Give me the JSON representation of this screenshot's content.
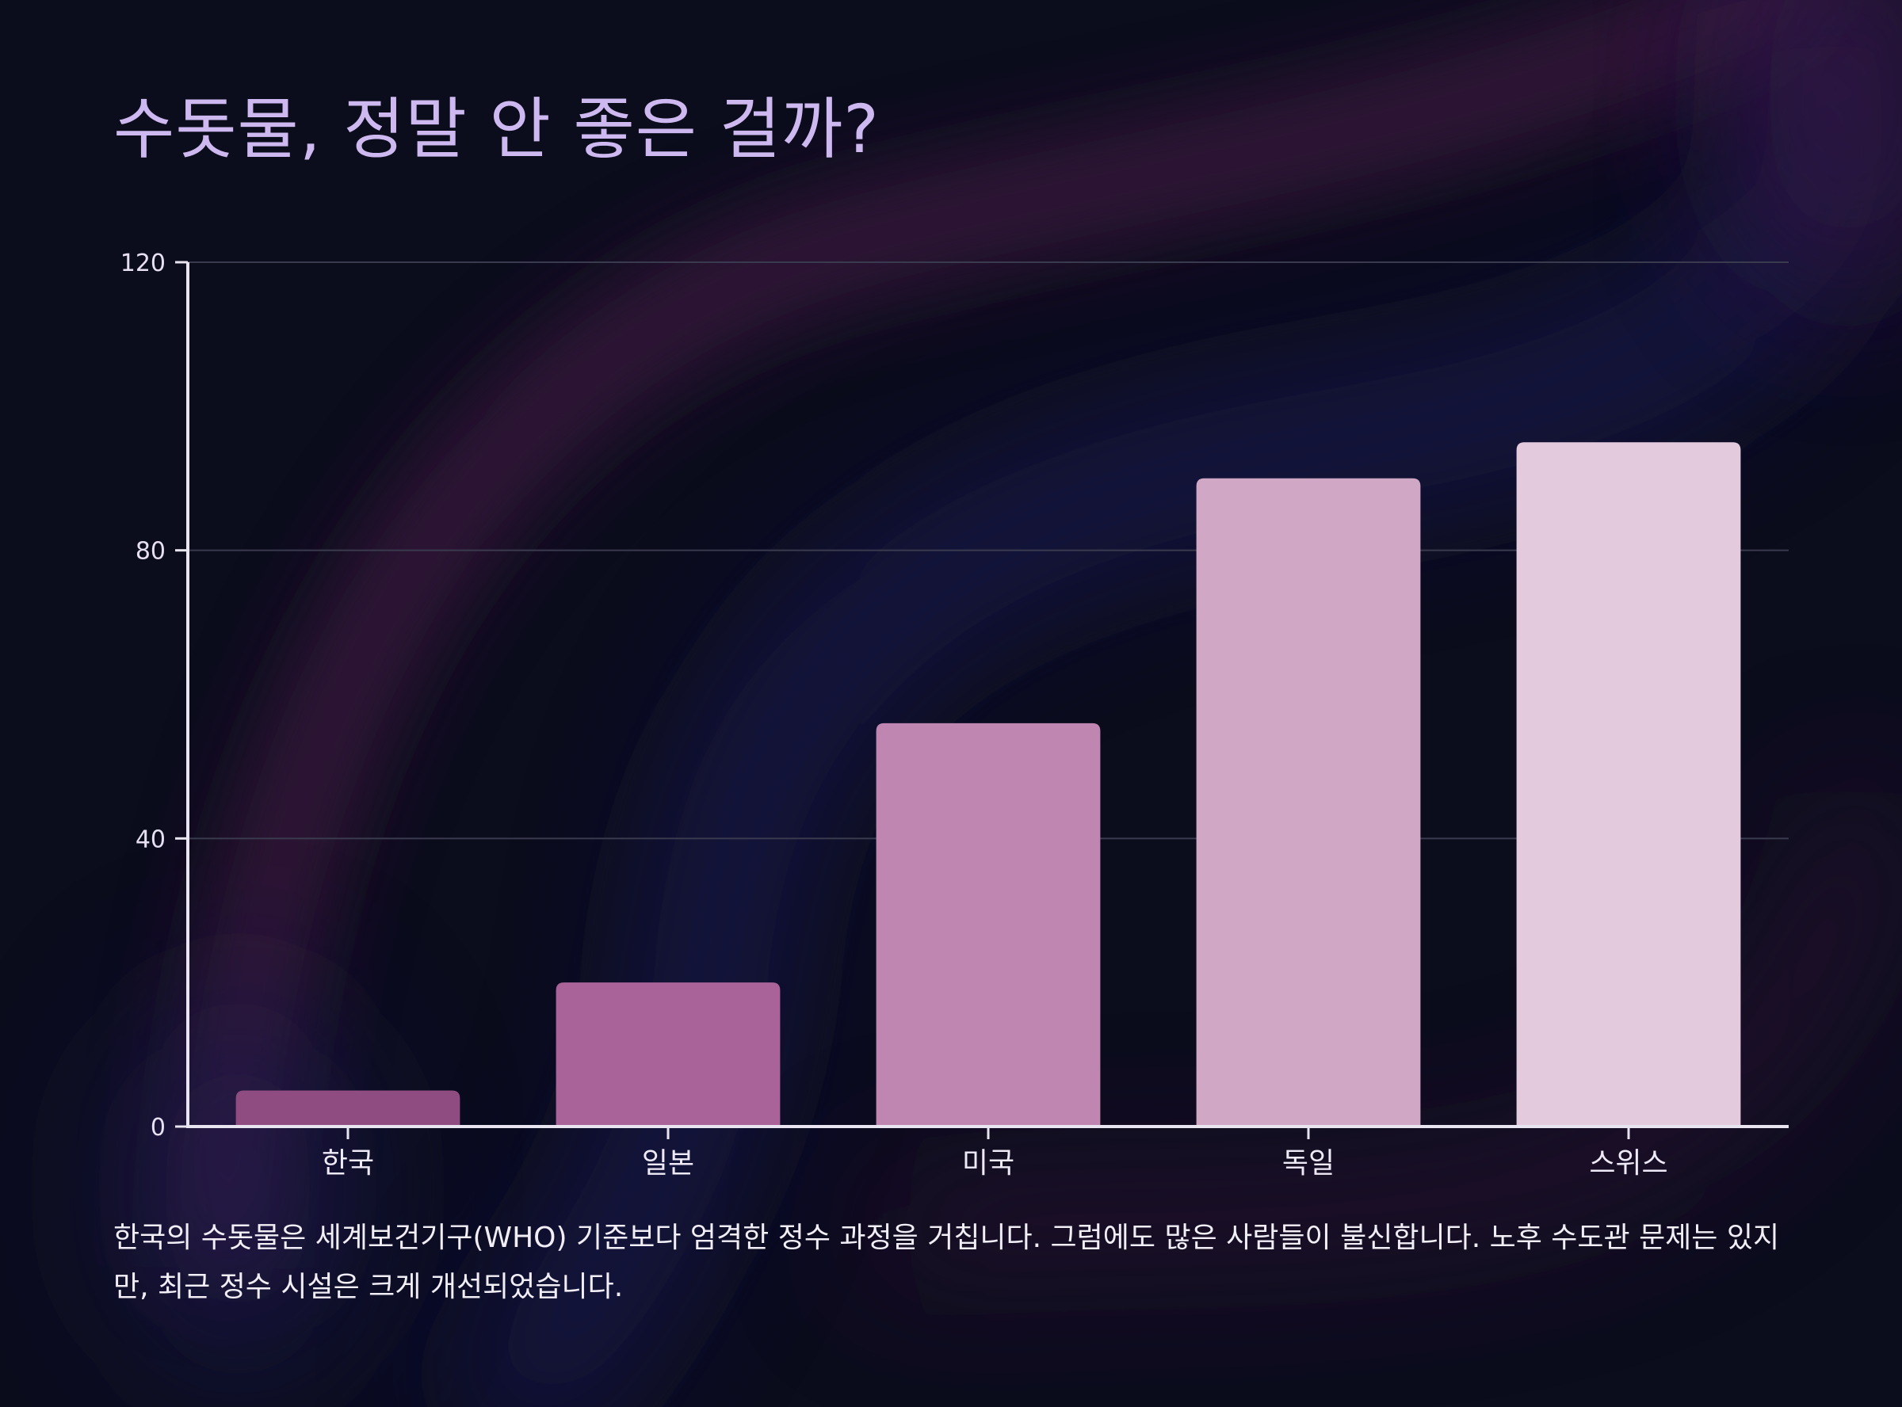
{
  "title": "수돗물, 정말 안 좋은 걸까?",
  "description": "한국의 수돗물은 세계보건기구(WHO) 기준보다 엄격한 정수 과정을 거칩니다. 그럼에도 많은 사람들이 불신합니다. 노후 수도관 문제는 있지만, 최근 정수 시설은 크게 개선되었습니다.",
  "colors": {
    "background": "#0b0c1c",
    "title": "#cdb9f0",
    "axis": "#e8e4f0",
    "grid": "#3a3a4e",
    "bars": [
      "#8e4c80",
      "#a96398",
      "#bf86b1",
      "#d0a8c6",
      "#e3cadd"
    ]
  },
  "chart_data": {
    "type": "bar",
    "categories": [
      "한국",
      "일본",
      "미국",
      "독일",
      "스위스"
    ],
    "values": [
      5,
      20,
      56,
      90,
      95
    ],
    "ylim": [
      0,
      120
    ],
    "yticks": [
      0,
      40,
      80,
      120
    ],
    "grid": true,
    "legend": "none"
  }
}
